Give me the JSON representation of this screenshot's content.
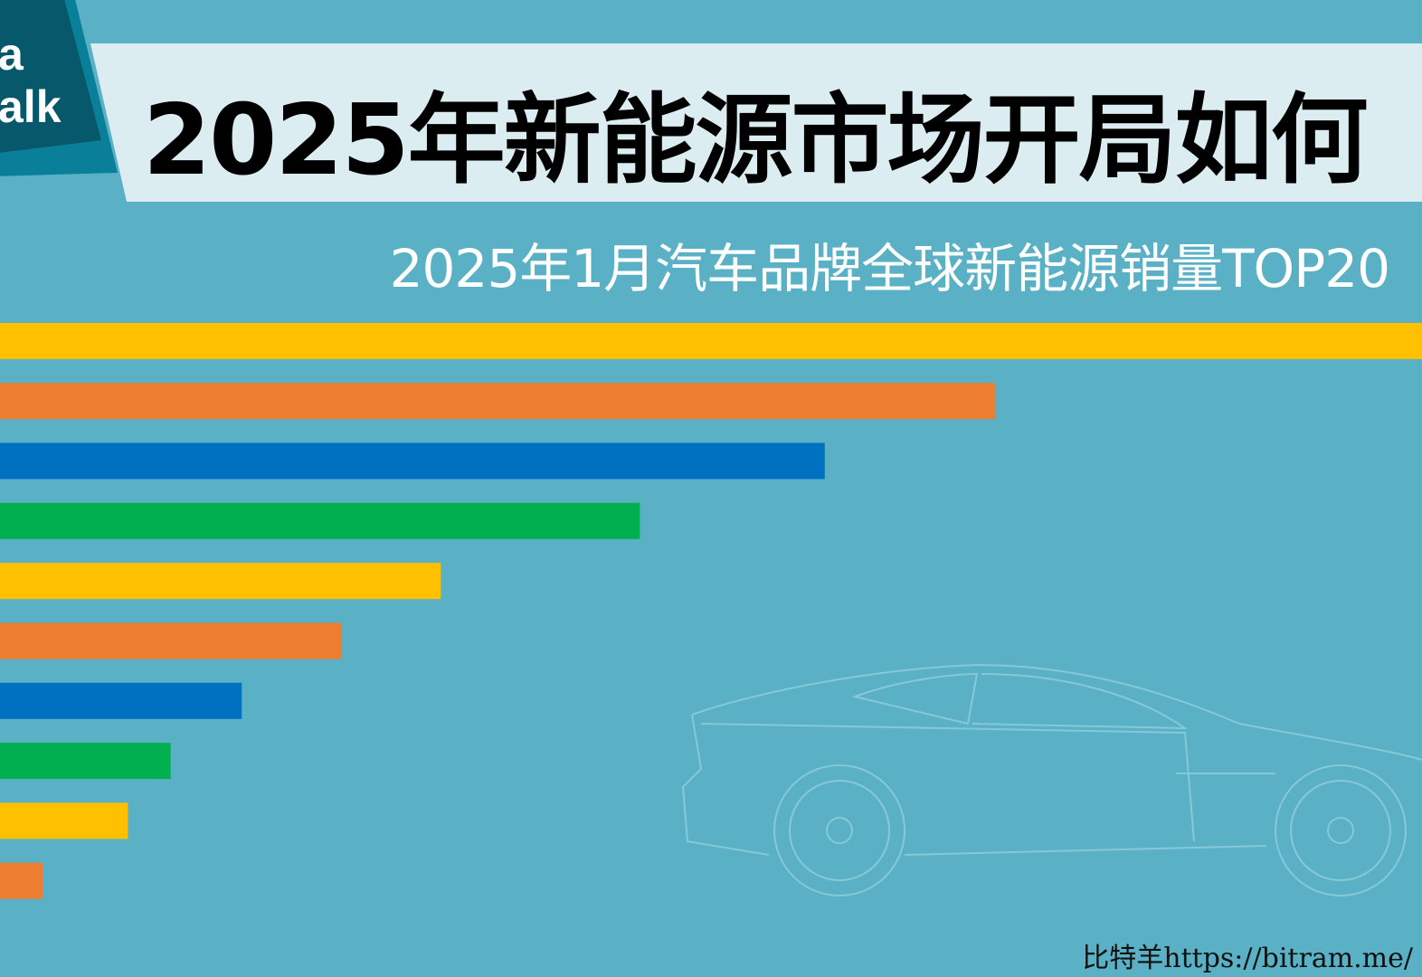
{
  "logo": {
    "line1": "a",
    "line2": "alk"
  },
  "title": "2025年新能源市场开局如何",
  "chart_data": {
    "type": "bar",
    "orientation": "horizontal",
    "subtitle": "2025年1月汽车品牌全球新能源销量TOP20",
    "values_note": "relative length, % of longest bar",
    "values": [
      100,
      70,
      58,
      45,
      31,
      24,
      17,
      12,
      9,
      3
    ],
    "colors": [
      "#ffc000",
      "#ed7d31",
      "#0070c0",
      "#00b050",
      "#ffc000",
      "#ed7d31",
      "#0070c0",
      "#00b050",
      "#ffc000",
      "#ed7d31"
    ],
    "grid": false,
    "legend": "none"
  },
  "watermark": "比特羊https://bitram.me/"
}
